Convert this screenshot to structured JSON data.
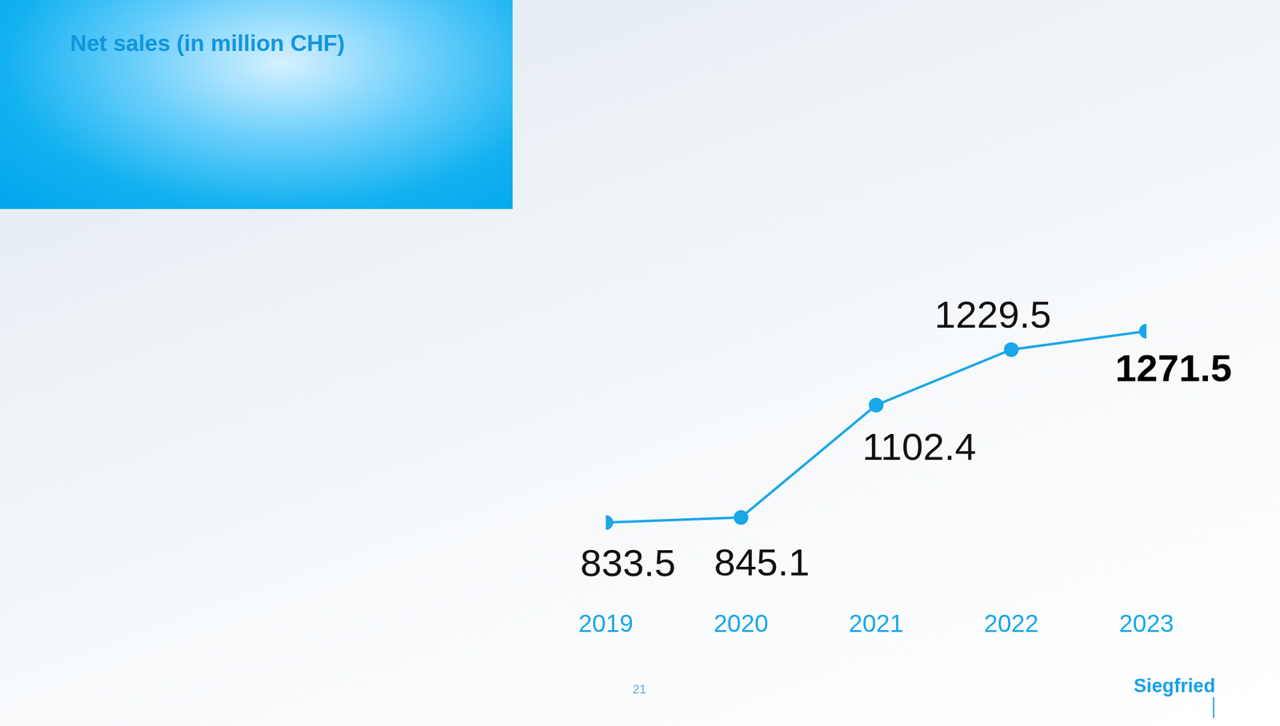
{
  "chart_data": {
    "type": "line",
    "title": "Net sales (in million CHF)",
    "categories": [
      "2019",
      "2020",
      "2021",
      "2022",
      "2023"
    ],
    "values": [
      833.5,
      845.1,
      1102.4,
      1229.5,
      1271.5
    ],
    "color": "#1aa7e8",
    "marker": "circle",
    "ylim": [
      700,
      1350
    ],
    "grid": false,
    "data_labels": true,
    "tick_labels": "x"
  },
  "footer": {
    "page_number": "21",
    "brand": "Siegfried"
  }
}
